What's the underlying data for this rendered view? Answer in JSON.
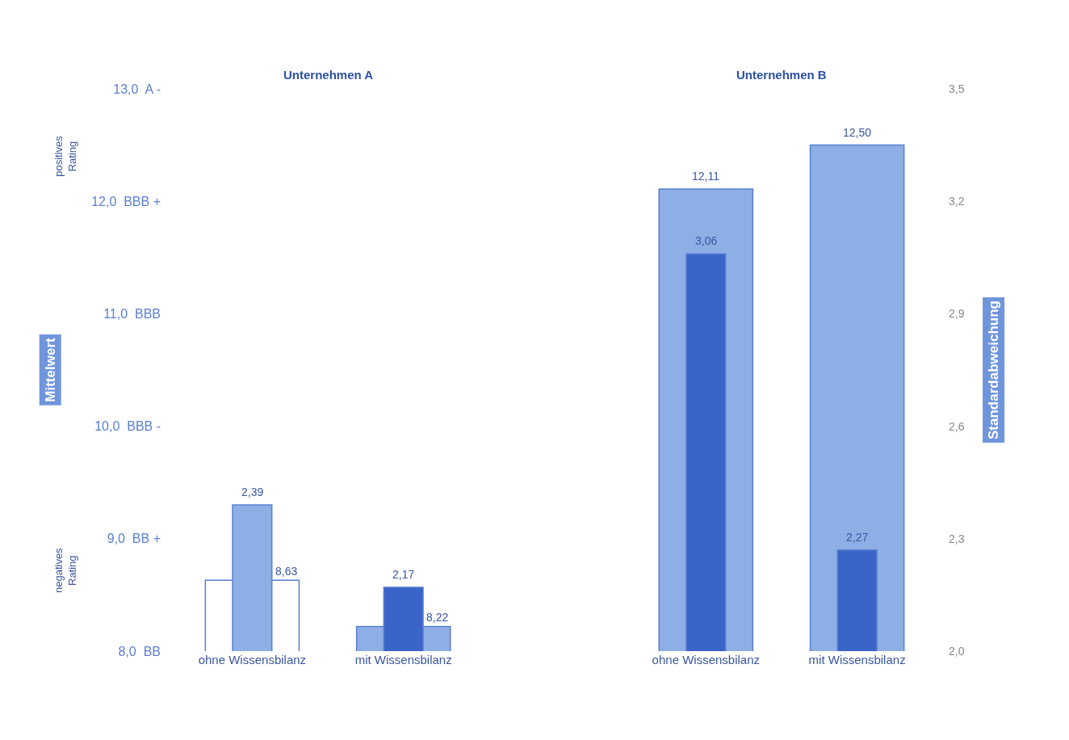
{
  "chart_data": {
    "type": "bar",
    "categories": [
      "ohne Wissensbilanz",
      "mit Wissensbilanz",
      null,
      "ohne Wissensbilanz",
      "mit Wissensbilanz"
    ],
    "series": [
      {
        "colors": [
          "#ffffff",
          "#8eaee6",
          null,
          "#8eaee6",
          "#8eaee6"
        ],
        "values": [
          8.63,
          8.22,
          null,
          12.11,
          12.5
        ],
        "value_labels": [
          "8,63",
          "8,22",
          null,
          "12,11",
          "12,50"
        ]
      },
      {
        "axis": "y2",
        "colors": [
          "#8eaee6",
          "#3a64c8",
          null,
          "#3a64c8",
          "#3a64c8"
        ],
        "values": [
          2.39,
          2.17,
          null,
          3.06,
          2.27
        ],
        "value_labels": [
          "2,39",
          "2,17",
          null,
          "3,06",
          "2,27"
        ]
      }
    ],
    "ylabel": "Mittelwert",
    "y2label": "Standardabweichung",
    "ylim": [
      8,
      13
    ],
    "yticks": [
      {
        "value": 8,
        "label": "8,0  BB"
      },
      {
        "value": 9,
        "label": "9,0  BB +"
      },
      {
        "value": 10,
        "label": "10,0  BBB -"
      },
      {
        "value": 11,
        "label": "11,0  BBB"
      },
      {
        "value": 12,
        "label": "12,0  BBB +"
      },
      {
        "value": 13,
        "label": "13,0  A -"
      }
    ],
    "y2lim": [
      2.0,
      3.5
    ],
    "y2ticks": [
      {
        "value": 2.0,
        "label": "2,0"
      },
      {
        "value": 2.3,
        "label": "2,3"
      },
      {
        "value": 2.6,
        "label": "2,6"
      },
      {
        "value": 2.9,
        "label": "2,9"
      },
      {
        "value": 3.2,
        "label": "3,2"
      },
      {
        "value": 3.5,
        "label": "3,5"
      }
    ],
    "annotations": [
      "Unternehmen A",
      "Unternehmen B",
      "positives Rating",
      "negatives Rating"
    ],
    "legend": false,
    "grid": false
  }
}
